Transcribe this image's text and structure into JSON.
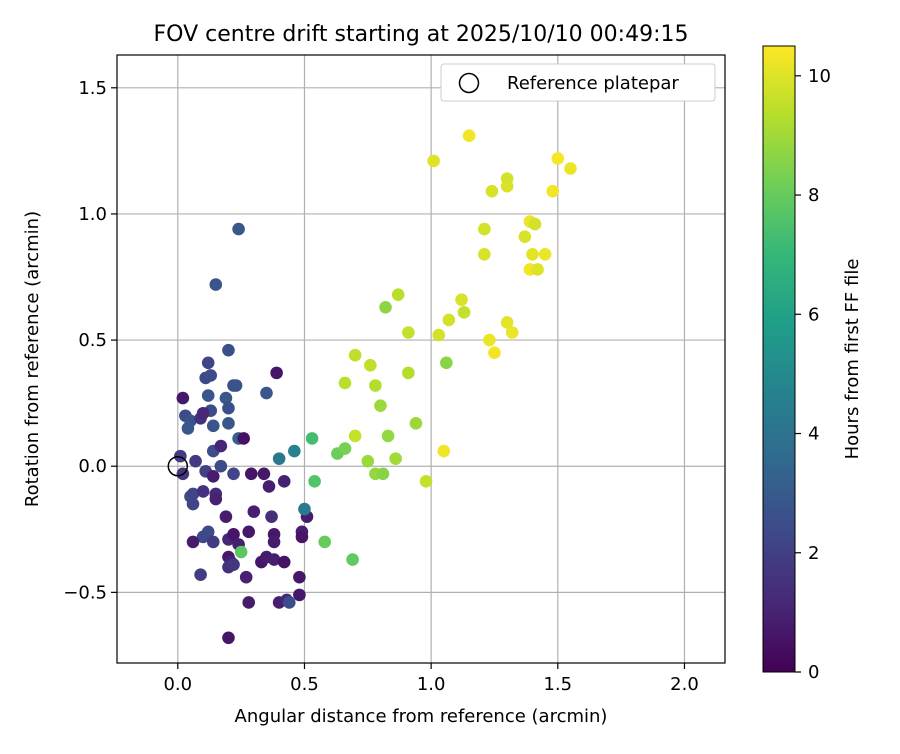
{
  "chart_data": {
    "type": "scatter",
    "title": "FOV centre drift starting at 2025/10/10 00:49:15",
    "xlabel": "Angular distance from reference (arcmin)",
    "ylabel": "Rotation from reference (arcmin)",
    "xlim": [
      -0.24,
      2.16
    ],
    "ylim": [
      -0.78,
      1.63
    ],
    "xticks": [
      0.0,
      0.5,
      1.0,
      1.5,
      2.0
    ],
    "xtick_labels": [
      "0.0",
      "0.5",
      "1.0",
      "1.5",
      "2.0"
    ],
    "yticks": [
      -0.5,
      0.0,
      0.5,
      1.0,
      1.5
    ],
    "ytick_labels": [
      "−0.5",
      "0.0",
      "0.5",
      "1.0",
      "1.5"
    ],
    "grid": true,
    "legend": {
      "label": "Reference platepar",
      "placement": "top-right"
    },
    "reference_point": {
      "x": 0.0,
      "y": 0.0
    },
    "colorbar": {
      "label": "Hours from first FF file",
      "range": [
        0,
        10.5
      ],
      "ticks": [
        0,
        2,
        4,
        6,
        8,
        10
      ],
      "tick_labels": [
        "0",
        "2",
        "4",
        "6",
        "8",
        "10"
      ],
      "colormap": "viridis",
      "colors": [
        "#440154",
        "#482878",
        "#3e4989",
        "#31688e",
        "#26828e",
        "#1f9e89",
        "#35b779",
        "#6ece58",
        "#b5de2b",
        "#fde725"
      ]
    },
    "points": [
      {
        "x": 0.24,
        "y": 0.94,
        "t": 2.9
      },
      {
        "x": 0.15,
        "y": 0.72,
        "t": 2.8
      },
      {
        "x": 0.2,
        "y": 0.46,
        "t": 2.6
      },
      {
        "x": 0.12,
        "y": 0.41,
        "t": 2.2
      },
      {
        "x": 0.11,
        "y": 0.35,
        "t": 2.3
      },
      {
        "x": 0.13,
        "y": 0.36,
        "t": 2.4
      },
      {
        "x": 0.22,
        "y": 0.32,
        "t": 2.5
      },
      {
        "x": 0.23,
        "y": 0.32,
        "t": 2.7
      },
      {
        "x": 0.12,
        "y": 0.28,
        "t": 2.8
      },
      {
        "x": 0.19,
        "y": 0.27,
        "t": 2.9
      },
      {
        "x": 0.2,
        "y": 0.23,
        "t": 2.6
      },
      {
        "x": 0.13,
        "y": 0.22,
        "t": 2.5
      },
      {
        "x": 0.35,
        "y": 0.29,
        "t": 2.8
      },
      {
        "x": 0.39,
        "y": 0.37,
        "t": 0.6
      },
      {
        "x": 0.02,
        "y": 0.27,
        "t": 0.7
      },
      {
        "x": 0.03,
        "y": 0.2,
        "t": 2.4
      },
      {
        "x": 0.05,
        "y": 0.18,
        "t": 2.7
      },
      {
        "x": 0.04,
        "y": 0.15,
        "t": 2.9
      },
      {
        "x": 0.09,
        "y": 0.19,
        "t": 1.5
      },
      {
        "x": 0.1,
        "y": 0.21,
        "t": 1.2
      },
      {
        "x": 0.14,
        "y": 0.16,
        "t": 2.8
      },
      {
        "x": 0.2,
        "y": 0.17,
        "t": 2.9
      },
      {
        "x": 0.24,
        "y": 0.11,
        "t": 3.2
      },
      {
        "x": 0.26,
        "y": 0.11,
        "t": 0.5
      },
      {
        "x": 0.14,
        "y": 0.06,
        "t": 2.5
      },
      {
        "x": 0.17,
        "y": 0.08,
        "t": 1.1
      },
      {
        "x": 0.07,
        "y": 0.02,
        "t": 1.8
      },
      {
        "x": 0.01,
        "y": 0.04,
        "t": 1.9
      },
      {
        "x": 0.02,
        "y": -0.03,
        "t": 1.6
      },
      {
        "x": 0.11,
        "y": -0.02,
        "t": 2.0
      },
      {
        "x": 0.17,
        "y": 0.0,
        "t": 2.4
      },
      {
        "x": 0.14,
        "y": -0.04,
        "t": 0.8
      },
      {
        "x": 0.22,
        "y": -0.03,
        "t": 2.2
      },
      {
        "x": 0.29,
        "y": -0.03,
        "t": 0.6
      },
      {
        "x": 0.34,
        "y": -0.03,
        "t": 0.7
      },
      {
        "x": 0.36,
        "y": -0.08,
        "t": 0.9
      },
      {
        "x": 0.4,
        "y": 0.03,
        "t": 4.2
      },
      {
        "x": 0.46,
        "y": 0.06,
        "t": 4.6
      },
      {
        "x": 0.42,
        "y": -0.06,
        "t": 1.0
      },
      {
        "x": 0.05,
        "y": -0.12,
        "t": 2.4
      },
      {
        "x": 0.06,
        "y": -0.11,
        "t": 2.2
      },
      {
        "x": 0.1,
        "y": -0.1,
        "t": 1.5
      },
      {
        "x": 0.15,
        "y": -0.11,
        "t": 1.2
      },
      {
        "x": 0.15,
        "y": -0.13,
        "t": 1.0
      },
      {
        "x": 0.06,
        "y": -0.15,
        "t": 2.2
      },
      {
        "x": 0.19,
        "y": -0.2,
        "t": 0.8
      },
      {
        "x": 0.3,
        "y": -0.18,
        "t": 0.9
      },
      {
        "x": 0.37,
        "y": -0.2,
        "t": 1.4
      },
      {
        "x": 0.12,
        "y": -0.26,
        "t": 2.4
      },
      {
        "x": 0.1,
        "y": -0.28,
        "t": 2.3
      },
      {
        "x": 0.14,
        "y": -0.3,
        "t": 1.8
      },
      {
        "x": 0.06,
        "y": -0.3,
        "t": 0.8
      },
      {
        "x": 0.2,
        "y": -0.29,
        "t": 1.1
      },
      {
        "x": 0.22,
        "y": -0.27,
        "t": 0.6
      },
      {
        "x": 0.28,
        "y": -0.26,
        "t": 0.7
      },
      {
        "x": 0.24,
        "y": -0.31,
        "t": 0.9
      },
      {
        "x": 0.25,
        "y": -0.34,
        "t": 7.8
      },
      {
        "x": 0.38,
        "y": -0.27,
        "t": 0.7
      },
      {
        "x": 0.38,
        "y": -0.3,
        "t": 0.8
      },
      {
        "x": 0.49,
        "y": -0.26,
        "t": 0.9
      },
      {
        "x": 0.49,
        "y": -0.28,
        "t": 0.6
      },
      {
        "x": 0.51,
        "y": -0.2,
        "t": 0.8
      },
      {
        "x": 0.5,
        "y": -0.17,
        "t": 4.3
      },
      {
        "x": 0.2,
        "y": -0.36,
        "t": 0.7
      },
      {
        "x": 0.21,
        "y": -0.38,
        "t": 1.0
      },
      {
        "x": 0.2,
        "y": -0.4,
        "t": 1.4
      },
      {
        "x": 0.22,
        "y": -0.39,
        "t": 1.7
      },
      {
        "x": 0.33,
        "y": -0.38,
        "t": 0.6
      },
      {
        "x": 0.35,
        "y": -0.36,
        "t": 0.8
      },
      {
        "x": 0.38,
        "y": -0.37,
        "t": 0.9
      },
      {
        "x": 0.42,
        "y": -0.38,
        "t": 0.5
      },
      {
        "x": 0.09,
        "y": -0.43,
        "t": 1.9
      },
      {
        "x": 0.27,
        "y": -0.44,
        "t": 1.0
      },
      {
        "x": 0.48,
        "y": -0.44,
        "t": 0.7
      },
      {
        "x": 0.28,
        "y": -0.54,
        "t": 0.8
      },
      {
        "x": 0.4,
        "y": -0.54,
        "t": 0.9
      },
      {
        "x": 0.43,
        "y": -0.53,
        "t": 1.2
      },
      {
        "x": 0.44,
        "y": -0.54,
        "t": 2.5
      },
      {
        "x": 0.48,
        "y": -0.51,
        "t": 0.7
      },
      {
        "x": 0.2,
        "y": -0.68,
        "t": 0.6
      },
      {
        "x": 0.53,
        "y": 0.11,
        "t": 7.3
      },
      {
        "x": 0.54,
        "y": -0.06,
        "t": 7.6
      },
      {
        "x": 0.63,
        "y": 0.05,
        "t": 8.1
      },
      {
        "x": 0.66,
        "y": 0.07,
        "t": 8.3
      },
      {
        "x": 0.58,
        "y": -0.3,
        "t": 8.0
      },
      {
        "x": 0.69,
        "y": -0.37,
        "t": 7.9
      },
      {
        "x": 0.7,
        "y": 0.44,
        "t": 9.5
      },
      {
        "x": 0.7,
        "y": 0.12,
        "t": 9.6
      },
      {
        "x": 0.66,
        "y": 0.33,
        "t": 9.4
      },
      {
        "x": 0.76,
        "y": 0.4,
        "t": 9.5
      },
      {
        "x": 0.78,
        "y": 0.32,
        "t": 9.3
      },
      {
        "x": 0.8,
        "y": 0.24,
        "t": 8.9
      },
      {
        "x": 0.75,
        "y": 0.02,
        "t": 8.9
      },
      {
        "x": 0.78,
        "y": -0.03,
        "t": 8.8
      },
      {
        "x": 0.81,
        "y": -0.03,
        "t": 8.6
      },
      {
        "x": 0.83,
        "y": 0.12,
        "t": 8.8
      },
      {
        "x": 0.86,
        "y": 0.03,
        "t": 9.0
      },
      {
        "x": 0.82,
        "y": 0.63,
        "t": 8.7
      },
      {
        "x": 0.87,
        "y": 0.68,
        "t": 9.4
      },
      {
        "x": 0.91,
        "y": 0.53,
        "t": 9.6
      },
      {
        "x": 0.91,
        "y": 0.37,
        "t": 9.3
      },
      {
        "x": 0.94,
        "y": 0.17,
        "t": 8.9
      },
      {
        "x": 0.98,
        "y": -0.06,
        "t": 9.6
      },
      {
        "x": 1.01,
        "y": 1.21,
        "t": 10.0
      },
      {
        "x": 1.03,
        "y": 0.52,
        "t": 9.8
      },
      {
        "x": 1.06,
        "y": 0.41,
        "t": 8.6
      },
      {
        "x": 1.05,
        "y": 0.06,
        "t": 10.3
      },
      {
        "x": 1.07,
        "y": 0.58,
        "t": 9.8
      },
      {
        "x": 1.12,
        "y": 0.66,
        "t": 9.9
      },
      {
        "x": 1.13,
        "y": 0.61,
        "t": 9.6
      },
      {
        "x": 1.15,
        "y": 1.31,
        "t": 10.3
      },
      {
        "x": 1.21,
        "y": 0.94,
        "t": 9.8
      },
      {
        "x": 1.21,
        "y": 0.84,
        "t": 9.9
      },
      {
        "x": 1.23,
        "y": 0.5,
        "t": 10.2
      },
      {
        "x": 1.24,
        "y": 1.09,
        "t": 9.9
      },
      {
        "x": 1.25,
        "y": 0.45,
        "t": 10.3
      },
      {
        "x": 1.3,
        "y": 1.14,
        "t": 9.8
      },
      {
        "x": 1.3,
        "y": 1.11,
        "t": 9.9
      },
      {
        "x": 1.3,
        "y": 0.57,
        "t": 10.1
      },
      {
        "x": 1.32,
        "y": 0.53,
        "t": 10.2
      },
      {
        "x": 1.37,
        "y": 0.91,
        "t": 9.9
      },
      {
        "x": 1.39,
        "y": 0.97,
        "t": 10.2
      },
      {
        "x": 1.41,
        "y": 0.96,
        "t": 9.8
      },
      {
        "x": 1.4,
        "y": 0.84,
        "t": 10.1
      },
      {
        "x": 1.39,
        "y": 0.78,
        "t": 10.3
      },
      {
        "x": 1.42,
        "y": 0.78,
        "t": 10.0
      },
      {
        "x": 1.45,
        "y": 0.84,
        "t": 10.2
      },
      {
        "x": 1.48,
        "y": 1.09,
        "t": 10.3
      },
      {
        "x": 1.5,
        "y": 1.22,
        "t": 10.4
      },
      {
        "x": 1.55,
        "y": 1.18,
        "t": 10.2
      }
    ]
  }
}
